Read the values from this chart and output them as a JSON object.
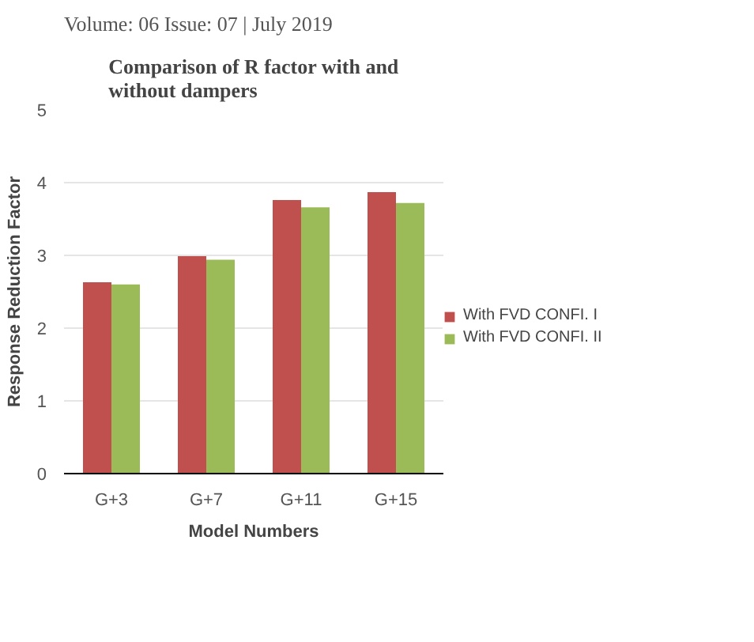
{
  "chart_data": {
    "type": "bar",
    "title": "Comparison of R factor with and without dampers",
    "xlabel": "Model Numbers",
    "ylabel": "Response Reduction Factor",
    "annotations": [
      "Volume: 06 Issue: 07 | July 2019"
    ],
    "categories": [
      "G+3",
      "G+7",
      "G+11",
      "G+15"
    ],
    "series": [
      {
        "name": "With FVD CONFI. I",
        "color": "#c0504d",
        "values": [
          2.63,
          2.99,
          3.76,
          3.87
        ]
      },
      {
        "name": "With FVD CONFI. II",
        "color": "#9bbb59",
        "values": [
          2.6,
          2.94,
          3.66,
          3.72
        ]
      }
    ],
    "ylim": [
      0,
      5
    ],
    "yticks": [
      0,
      1,
      2,
      3,
      4,
      5
    ],
    "grid": "y",
    "legend": "right"
  }
}
